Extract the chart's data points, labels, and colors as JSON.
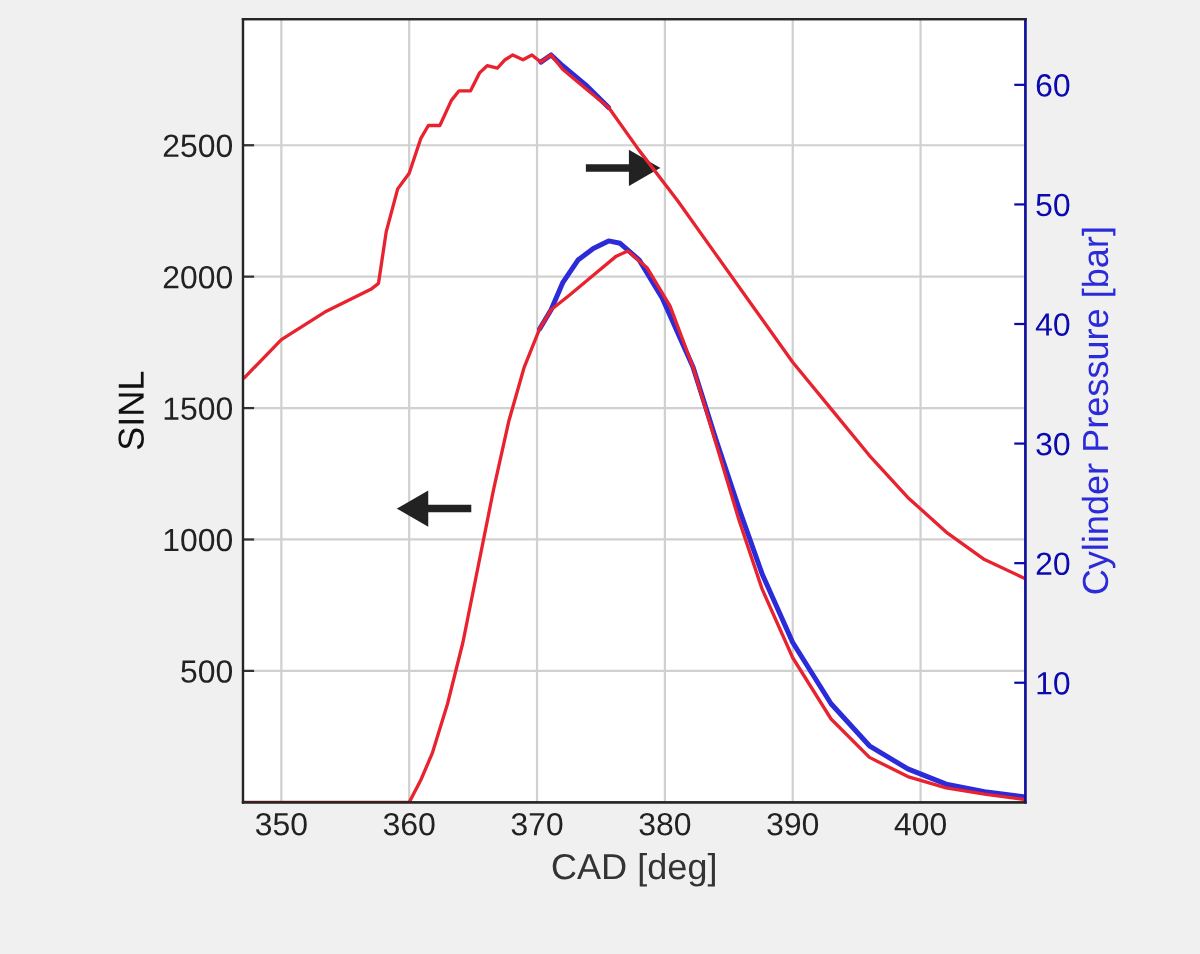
{
  "chart_data": {
    "type": "line",
    "xlabel": "CAD [deg]",
    "ylabel": "SINL",
    "y2label": "Cylinder Pressure [bar]",
    "xlim": [
      347,
      408.2
    ],
    "xticks": [
      350,
      360,
      370,
      380,
      390,
      400
    ],
    "ylim": [
      0,
      2980
    ],
    "yticks": [
      500,
      1000,
      1500,
      2000,
      2500
    ],
    "y2lim": [
      0,
      65.5
    ],
    "y2ticks": [
      10,
      20,
      30,
      40,
      50,
      60
    ],
    "grid": true,
    "legend": false,
    "line_style": "solid",
    "series": [
      {
        "color": "#2b2bd9",
        "axis": "y2",
        "x": [
          370.3,
          371.1,
          372,
          373.8,
          375.6
        ],
        "values": [
          61.9,
          62.5,
          61.6,
          60.0,
          58.1
        ]
      },
      {
        "color": "#e8232f",
        "axis": "y2",
        "x": [
          347.1,
          350,
          353.4,
          357,
          357.6,
          358.2,
          359.1,
          360,
          360.9,
          361.5,
          362.4,
          363.3,
          363.9,
          364.8,
          365.5,
          366.1,
          366.9,
          367.5,
          368.1,
          368.9,
          369.6,
          370.3,
          371.1,
          372,
          373.8,
          375.6,
          378,
          381,
          384,
          387,
          390,
          393,
          396,
          399,
          402,
          405,
          408.2
        ],
        "values": [
          35.5,
          38.7,
          41.0,
          42.9,
          43.4,
          47.7,
          51.3,
          52.6,
          55.5,
          56.6,
          56.6,
          58.7,
          59.5,
          59.5,
          61.0,
          61.6,
          61.4,
          62.1,
          62.5,
          62.1,
          62.5,
          61.9,
          62.5,
          61.3,
          59.7,
          58.1,
          54.5,
          50.3,
          45.8,
          41.3,
          36.8,
          32.9,
          29.0,
          25.5,
          22.6,
          20.3,
          18.7
        ]
      },
      {
        "color": "#2b2bd9",
        "x": [
          370.2,
          371.1,
          372,
          373.2,
          374.4,
          375.6,
          376.5,
          378,
          379.8,
          382.2,
          384,
          385.8,
          387.6,
          390,
          393,
          396,
          399,
          402,
          405,
          408.2
        ],
        "values": [
          1801,
          1874,
          1976,
          2063,
          2107,
          2136,
          2127,
          2063,
          1918,
          1656,
          1379,
          1117,
          870,
          608,
          375,
          215,
          127,
          69,
          40,
          20
        ]
      },
      {
        "color": "#e8232f",
        "x": [
          347,
          360,
          360.9,
          361.8,
          363,
          364.2,
          365.4,
          366.6,
          367.8,
          369,
          370.2,
          371.1,
          372.6,
          374.4,
          376.2,
          377.1,
          378.6,
          380.4,
          382.2,
          384,
          385.8,
          387.6,
          390,
          393,
          396,
          399,
          402,
          405,
          408.2
        ],
        "values": [
          0,
          0,
          84,
          186,
          375,
          608,
          899,
          1190,
          1452,
          1656,
          1801,
          1874,
          1932,
          2005,
          2078,
          2098,
          2034,
          1889,
          1656,
          1365,
          1073,
          812,
          550,
          317,
          171,
          98,
          55,
          31,
          10
        ]
      }
    ]
  }
}
